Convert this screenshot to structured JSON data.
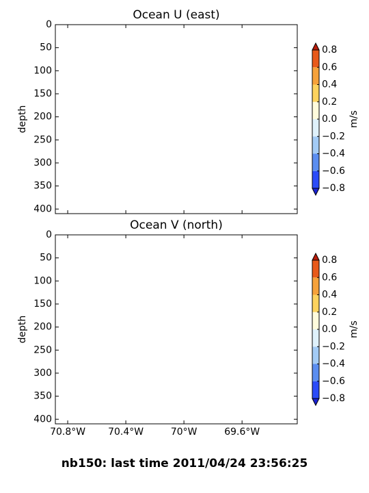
{
  "chart_data": [
    {
      "type": "contour",
      "title": "Ocean U (east)",
      "ylabel": "depth",
      "xlim": [
        -70.885,
        -69.22
      ],
      "xticks": [
        -70.8,
        -70.4,
        -70,
        -69.6
      ],
      "ylim": [
        410,
        0
      ],
      "yticks": [
        0,
        50,
        100,
        150,
        200,
        250,
        300,
        350,
        400
      ],
      "colorbar": {
        "label": "m/s",
        "ticks": [
          {
            "value": -0.8,
            "label": "−0.8"
          },
          {
            "value": -0.6,
            "label": "−0.6"
          },
          {
            "value": -0.4,
            "label": "−0.4"
          },
          {
            "value": -0.2,
            "label": "−0.2"
          },
          {
            "value": 0,
            "label": "0.0"
          },
          0.2,
          0.4,
          0.6,
          0.8
        ],
        "colors": [
          "#2b4cf8",
          "#5b8ef0",
          "#a3cbf5",
          "#dff1fb",
          "#fffbdc",
          "#fdd35e",
          "#f6a23a",
          "#e85a1a"
        ],
        "extend_colors": [
          "#1a22d4",
          "#b81c0a"
        ]
      }
    },
    {
      "type": "contour",
      "title": "Ocean V (north)",
      "ylabel": "depth",
      "xlim": [
        -70.885,
        -69.22
      ],
      "xticks": [
        {
          "value": -70.8,
          "label": "70.8°W"
        },
        {
          "value": -70.4,
          "label": "70.4°W"
        },
        {
          "value": -70,
          "label": "70°W"
        },
        {
          "value": -69.6,
          "label": "69.6°W"
        }
      ],
      "ylim": [
        410,
        0
      ],
      "yticks": [
        0,
        50,
        100,
        150,
        200,
        250,
        300,
        350,
        400
      ],
      "colorbar": {
        "label": "m/s",
        "ticks": [
          {
            "value": -0.8,
            "label": "−0.8"
          },
          {
            "value": -0.6,
            "label": "−0.6"
          },
          {
            "value": -0.4,
            "label": "−0.4"
          },
          {
            "value": -0.2,
            "label": "−0.2"
          },
          {
            "value": 0,
            "label": "0.0"
          },
          0.2,
          0.4,
          0.6,
          0.8
        ],
        "colors": [
          "#2b4cf8",
          "#5b8ef0",
          "#a3cbf5",
          "#dff1fb",
          "#fffbdc",
          "#fdd35e",
          "#f6a23a",
          "#e85a1a"
        ],
        "extend_colors": [
          "#1a22d4",
          "#b81c0a"
        ]
      }
    }
  ],
  "footer": "nb150: last time 2011/04/24 23:56:25"
}
